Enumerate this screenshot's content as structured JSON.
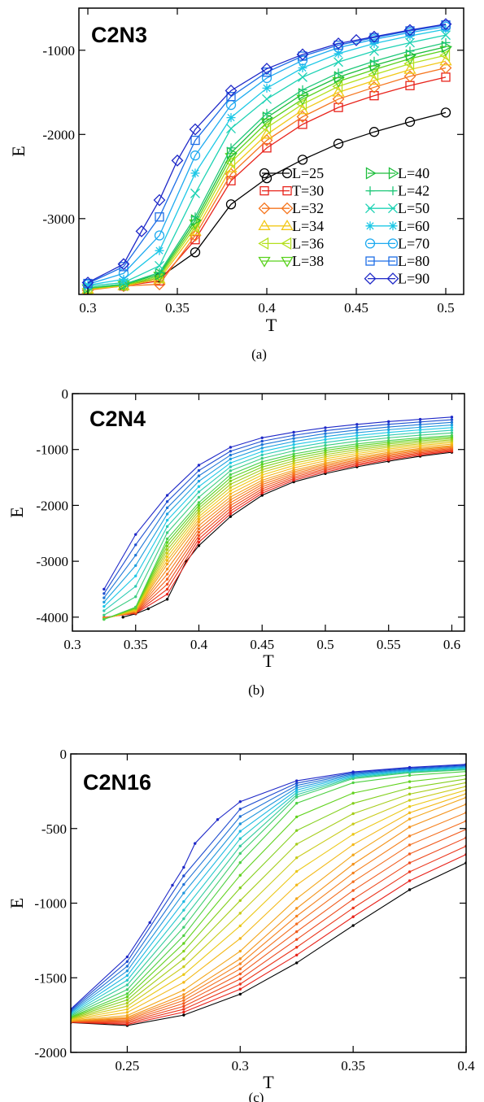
{
  "chart_data": [
    {
      "type": "line",
      "title": "C2N3",
      "caption": "(a)",
      "xlabel": "T",
      "ylabel": "E",
      "xlim": [
        0.295,
        0.51
      ],
      "ylim": [
        -3900,
        -500
      ],
      "xticks": [
        0.3,
        0.35,
        0.4,
        0.45,
        0.5
      ],
      "xtick_labels": [
        "0.3",
        "0.35",
        "0.4",
        "0.45",
        "0.5"
      ],
      "yticks": [
        -3000,
        -2000,
        -1000
      ],
      "ytick_labels": [
        "-3000",
        "-2000",
        "-1000"
      ],
      "grid": false,
      "legend": "bottom-right",
      "series": [
        {
          "name": "L=25",
          "color": "#000000",
          "marker": "circle",
          "x": [
            0.3,
            0.32,
            0.34,
            0.36,
            0.38,
            0.4,
            0.42,
            0.44,
            0.46,
            0.48,
            0.5
          ],
          "y": [
            -3840,
            -3800,
            -3700,
            -3400,
            -2830,
            -2520,
            -2300,
            -2110,
            -1970,
            -1850,
            -1740
          ]
        },
        {
          "name": "T=30",
          "color": "#e8231b",
          "marker": "square",
          "x": [
            0.3,
            0.32,
            0.34,
            0.36,
            0.38,
            0.4,
            0.42,
            0.44,
            0.46,
            0.48,
            0.5
          ],
          "y": [
            -3840,
            -3800,
            -3740,
            -3250,
            -2550,
            -2160,
            -1880,
            -1680,
            -1540,
            -1420,
            -1320
          ]
        },
        {
          "name": "L=32",
          "color": "#f5751e",
          "marker": "diamond",
          "x": [
            0.3,
            0.32,
            0.34,
            0.36,
            0.38,
            0.4,
            0.42,
            0.44,
            0.46,
            0.48,
            0.5
          ],
          "y": [
            -3850,
            -3800,
            -3780,
            -3200,
            -2470,
            -2070,
            -1790,
            -1580,
            -1440,
            -1310,
            -1210
          ]
        },
        {
          "name": "L=34",
          "color": "#f2c818",
          "marker": "triangle-up",
          "x": [
            0.3,
            0.32,
            0.34,
            0.36,
            0.38,
            0.4,
            0.42,
            0.44,
            0.46,
            0.48,
            0.5
          ],
          "y": [
            -3840,
            -3800,
            -3720,
            -3150,
            -2400,
            -2000,
            -1710,
            -1500,
            -1360,
            -1230,
            -1130
          ]
        },
        {
          "name": "L=36",
          "color": "#b4e01e",
          "marker": "triangle-left",
          "x": [
            0.3,
            0.32,
            0.34,
            0.36,
            0.38,
            0.4,
            0.42,
            0.44,
            0.46,
            0.48,
            0.5
          ],
          "y": [
            -3830,
            -3790,
            -3700,
            -3100,
            -2330,
            -1920,
            -1640,
            -1430,
            -1290,
            -1160,
            -1060
          ]
        },
        {
          "name": "L=38",
          "color": "#5ad21e",
          "marker": "triangle-down",
          "x": [
            0.3,
            0.32,
            0.34,
            0.36,
            0.38,
            0.4,
            0.42,
            0.44,
            0.46,
            0.48,
            0.5
          ],
          "y": [
            -3830,
            -3790,
            -3680,
            -3060,
            -2270,
            -1860,
            -1580,
            -1370,
            -1230,
            -1100,
            -1000
          ]
        },
        {
          "name": "L=40",
          "color": "#1ebe3c",
          "marker": "triangle-right",
          "x": [
            0.3,
            0.32,
            0.34,
            0.36,
            0.38,
            0.4,
            0.42,
            0.44,
            0.46,
            0.48,
            0.5
          ],
          "y": [
            -3820,
            -3780,
            -3660,
            -3020,
            -2220,
            -1800,
            -1520,
            -1320,
            -1180,
            -1060,
            -960
          ]
        },
        {
          "name": "L=42",
          "color": "#1ec878",
          "marker": "plus",
          "x": [
            0.3,
            0.32,
            0.34,
            0.36,
            0.38,
            0.4,
            0.42,
            0.44,
            0.46,
            0.48,
            0.5
          ],
          "y": [
            -3820,
            -3780,
            -3640,
            -2980,
            -2160,
            -1750,
            -1470,
            -1270,
            -1130,
            -1010,
            -910
          ]
        },
        {
          "name": "L=50",
          "color": "#1ed2b4",
          "marker": "x",
          "x": [
            0.3,
            0.32,
            0.34,
            0.36,
            0.38,
            0.4,
            0.42,
            0.44,
            0.46,
            0.48,
            0.5
          ],
          "y": [
            -3800,
            -3760,
            -3560,
            -2700,
            -1930,
            -1580,
            -1320,
            -1140,
            -1010,
            -910,
            -820
          ]
        },
        {
          "name": "L=60",
          "color": "#1ec8e6",
          "marker": "star",
          "x": [
            0.3,
            0.32,
            0.34,
            0.36,
            0.38,
            0.4,
            0.42,
            0.44,
            0.46,
            0.48,
            0.5
          ],
          "y": [
            -3790,
            -3720,
            -3380,
            -2460,
            -1800,
            -1450,
            -1210,
            -1040,
            -920,
            -830,
            -750
          ]
        },
        {
          "name": "L=70",
          "color": "#1eaaf0",
          "marker": "circle",
          "x": [
            0.3,
            0.32,
            0.34,
            0.36,
            0.38,
            0.4,
            0.42,
            0.44,
            0.46,
            0.48,
            0.5
          ],
          "y": [
            -3780,
            -3650,
            -3200,
            -2250,
            -1650,
            -1330,
            -1120,
            -970,
            -870,
            -790,
            -720
          ]
        },
        {
          "name": "L=80",
          "color": "#1e6ee6",
          "marker": "square",
          "x": [
            0.3,
            0.32,
            0.34,
            0.36,
            0.38,
            0.4,
            0.42,
            0.44,
            0.46,
            0.48,
            0.5
          ],
          "y": [
            -3770,
            -3570,
            -2980,
            -2070,
            -1550,
            -1260,
            -1070,
            -940,
            -850,
            -770,
            -700
          ]
        },
        {
          "name": "L=90",
          "color": "#1e28c8",
          "marker": "diamond",
          "x": [
            0.3,
            0.32,
            0.33,
            0.34,
            0.35,
            0.36,
            0.38,
            0.4,
            0.42,
            0.44,
            0.45,
            0.46,
            0.48,
            0.5
          ],
          "y": [
            -3760,
            -3540,
            -3150,
            -2780,
            -2310,
            -1940,
            -1480,
            -1220,
            -1050,
            -920,
            -880,
            -840,
            -760,
            -690
          ]
        }
      ]
    },
    {
      "type": "line",
      "title": "C2N4",
      "caption": "(b)",
      "xlabel": "T",
      "ylabel": "E",
      "xlim": [
        0.3,
        0.61
      ],
      "ylim": [
        -4250,
        0
      ],
      "xticks": [
        0.3,
        0.35,
        0.4,
        0.45,
        0.5,
        0.55,
        0.6
      ],
      "xtick_labels": [
        "0.3",
        "0.35",
        "0.4",
        "0.45",
        "0.5",
        "0.55",
        "0.6"
      ],
      "yticks": [
        -4000,
        -3000,
        -2000,
        -1000,
        0
      ],
      "ytick_labels": [
        "-4000",
        "-3000",
        "-2000",
        "-1000",
        "0"
      ],
      "grid": false,
      "legend": "none",
      "color_low": "#000000",
      "gradient": [
        "#e8231b",
        "#f5751e",
        "#f2c818",
        "#5ad21e",
        "#1ec8e6",
        "#1e28c8"
      ],
      "series_count": 22,
      "x": [
        0.325,
        0.35,
        0.375,
        0.4,
        0.425,
        0.45,
        0.475,
        0.5,
        0.525,
        0.55,
        0.575,
        0.6
      ],
      "series": [
        {
          "x": [
            0.34,
            0.35,
            0.36,
            0.375,
            0.39,
            0.4,
            0.425,
            0.45,
            0.475,
            0.5,
            0.525,
            0.55,
            0.575,
            0.6
          ],
          "y": [
            -4000,
            -3940,
            -3850,
            -3680,
            -3000,
            -2720,
            -2200,
            -1820,
            -1580,
            -1430,
            -1310,
            -1210,
            -1120,
            -1050
          ]
        },
        {
          "x": [
            0.325,
            0.35,
            0.375,
            0.4,
            0.425,
            0.45,
            0.475,
            0.5,
            0.525,
            0.55,
            0.575,
            0.6
          ],
          "y": [
            -4030,
            -3890,
            -3050,
            -2300,
            -1850,
            -1550,
            -1370,
            -1240,
            -1140,
            -1050,
            -980,
            -930
          ]
        },
        {
          "x": [
            0.325,
            0.35,
            0.375,
            0.4,
            0.425,
            0.45,
            0.475,
            0.5,
            0.525,
            0.55,
            0.575,
            0.6
          ],
          "y": [
            -4040,
            -3820,
            -2600,
            -1950,
            -1450,
            -1220,
            -1080,
            -980,
            -900,
            -840,
            -790,
            -750
          ]
        },
        {
          "x": [
            0.325,
            0.35,
            0.375,
            0.4,
            0.425,
            0.45,
            0.475,
            0.5,
            0.525,
            0.55,
            0.575,
            0.6
          ],
          "y": [
            -3500,
            -2520,
            -1820,
            -1280,
            -960,
            -790,
            -690,
            -610,
            -550,
            -500,
            -460,
            -420
          ]
        }
      ]
    },
    {
      "type": "line",
      "title": "C2N16",
      "caption": "(c)",
      "xlabel": "T",
      "ylabel": "E",
      "xlim": [
        0.225,
        0.4
      ],
      "ylim": [
        -2000,
        0
      ],
      "xticks": [
        0.25,
        0.3,
        0.35,
        0.4
      ],
      "xtick_labels": [
        "0.25",
        "0.3",
        "0.35",
        "0.4"
      ],
      "yticks": [
        -2000,
        -1500,
        -1000,
        -500,
        0
      ],
      "ytick_labels": [
        "-2000",
        "-1500",
        "-1000",
        "-500",
        "0"
      ],
      "grid": false,
      "legend": "none",
      "color_low": "#000000",
      "gradient": [
        "#e8231b",
        "#f5751e",
        "#f2c818",
        "#5ad21e",
        "#1ec8e6",
        "#1e28c8"
      ],
      "series_count": 24,
      "x": [
        0.225,
        0.25,
        0.275,
        0.3,
        0.325,
        0.35,
        0.375,
        0.4
      ],
      "series": [
        {
          "x": [
            0.225,
            0.25,
            0.275,
            0.3,
            0.325,
            0.35,
            0.375,
            0.4
          ],
          "y": [
            -1800,
            -1820,
            -1750,
            -1610,
            -1400,
            -1150,
            -910,
            -730
          ]
        },
        {
          "x": [
            0.225,
            0.25,
            0.275,
            0.3,
            0.325,
            0.35,
            0.375,
            0.4
          ],
          "y": [
            -1790,
            -1760,
            -1600,
            -1350,
            -1000,
            -700,
            -450,
            -300
          ]
        },
        {
          "x": [
            0.225,
            0.25,
            0.275,
            0.3,
            0.325,
            0.35,
            0.375,
            0.4
          ],
          "y": [
            -1760,
            -1600,
            -1200,
            -700,
            -300,
            -170,
            -130,
            -110
          ]
        },
        {
          "x": [
            0.225,
            0.25,
            0.26,
            0.27,
            0.275,
            0.28,
            0.29,
            0.3,
            0.325,
            0.35,
            0.375,
            0.4
          ],
          "y": [
            -1710,
            -1360,
            -1130,
            -880,
            -760,
            -600,
            -440,
            -320,
            -180,
            -120,
            -90,
            -70
          ]
        }
      ]
    }
  ],
  "legend": {
    "entries": [
      "L=25",
      "T=30",
      "L=32",
      "L=34",
      "L=36",
      "L=38",
      "L=40",
      "L=42",
      "L=50",
      "L=60",
      "L=70",
      "L=80",
      "L=90"
    ]
  }
}
